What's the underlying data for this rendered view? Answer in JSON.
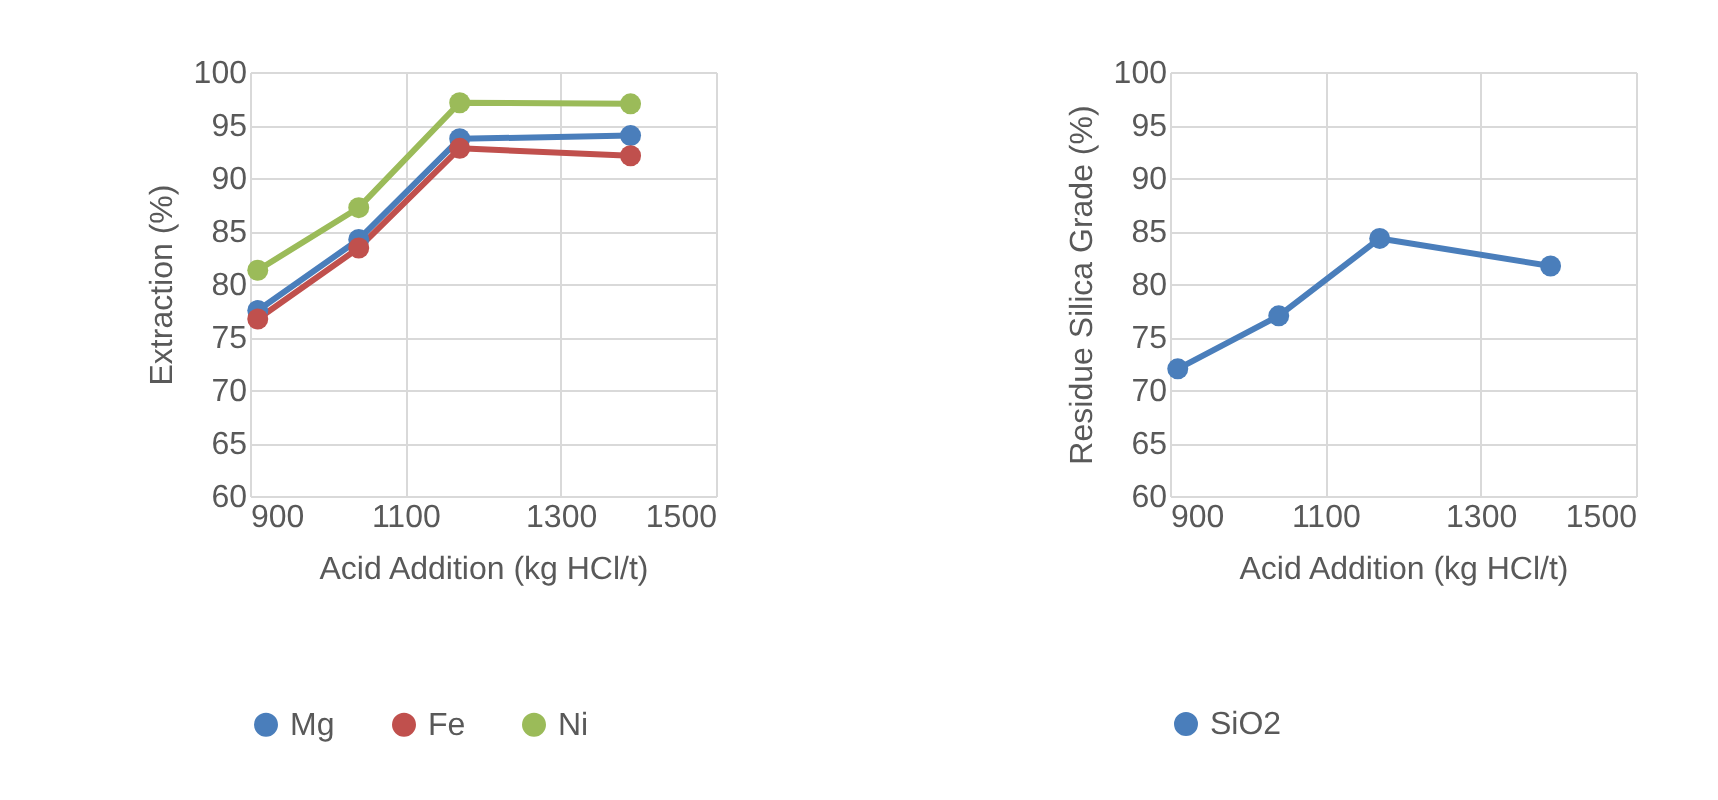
{
  "chart_data": [
    {
      "type": "line",
      "xlabel": "Acid Addition (kg HCl/t)",
      "ylabel": "Extraction (%)",
      "x": [
        910,
        1040,
        1170,
        1390
      ],
      "xlim": [
        900,
        1500
      ],
      "xticks": [
        900,
        1100,
        1300,
        1500
      ],
      "ylim": [
        60,
        100
      ],
      "yticks": [
        60,
        65,
        70,
        75,
        80,
        85,
        90,
        95,
        100
      ],
      "grid": true,
      "legend": "bottom",
      "marker": "circle",
      "series": [
        {
          "name": "Mg",
          "color": "#4a7ebb",
          "values": [
            77.5,
            84.2,
            93.7,
            94
          ]
        },
        {
          "name": "Fe",
          "color": "#c0504d",
          "values": [
            76.7,
            83.4,
            92.8,
            92.1
          ]
        },
        {
          "name": "Ni",
          "color": "#9bbb59",
          "values": [
            81.3,
            87.2,
            97.1,
            97
          ]
        }
      ]
    },
    {
      "type": "line",
      "xlabel": "Acid Addition (kg HCl/t)",
      "ylabel": "Residue Silica Grade (%)",
      "x": [
        910,
        1040,
        1170,
        1390
      ],
      "xlim": [
        900,
        1500
      ],
      "xticks": [
        900,
        1100,
        1300,
        1500
      ],
      "ylim": [
        60,
        100
      ],
      "yticks": [
        60,
        65,
        70,
        75,
        80,
        85,
        90,
        95,
        100
      ],
      "grid": true,
      "legend": "bottom",
      "marker": "circle",
      "series": [
        {
          "name": "SiO2",
          "color": "#4a7ebb",
          "values": [
            72,
            77,
            84.3,
            81.7
          ]
        }
      ]
    }
  ]
}
